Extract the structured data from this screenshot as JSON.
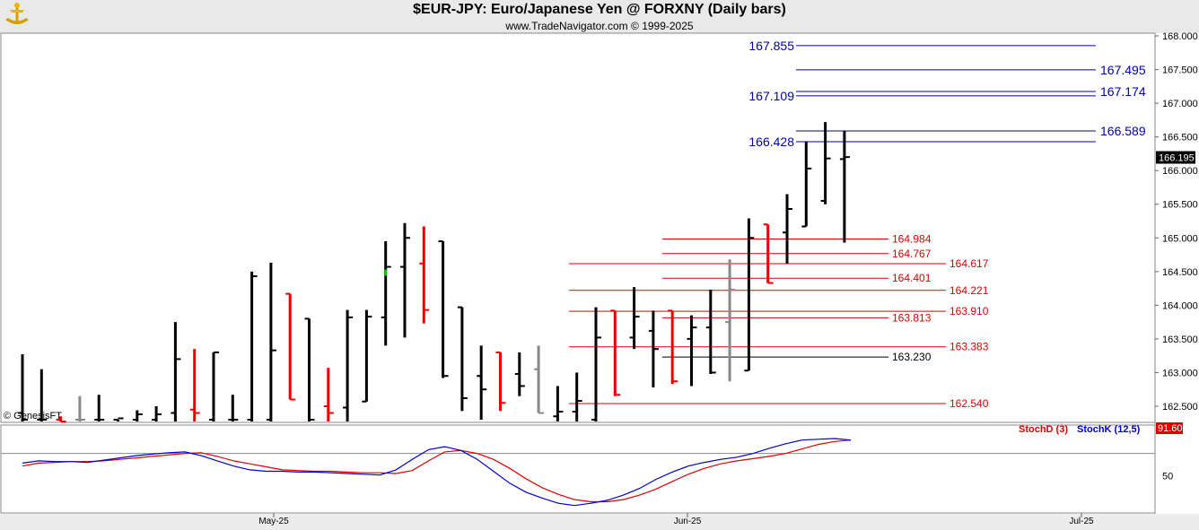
{
  "header": {
    "title": "$EUR-JPY:  Euro/Japanese Yen @ FORXNY  (Daily bars)",
    "subtitle": "www.TradeNavigator.com © 1999-2025",
    "logo_icon": "genesis-trade-navigator-logo"
  },
  "watermark": "© GenesisFT",
  "colors": {
    "up_bar": "#000000",
    "down_bar": "#ee0000",
    "neutral_bar": "#888888",
    "highlight_bar": "#00cc00",
    "blue_level": "#0000aa",
    "red_level": "#dd0000",
    "black_level": "#000000",
    "stoch_d": "#dd0000",
    "stoch_k": "#0000cc"
  },
  "chart_data": [
    {
      "type": "ohlc",
      "title": "$EUR-JPY:  Euro/Japanese Yen @ FORXNY  (Daily bars)",
      "x_ticks": [
        "May-25",
        "Jun-25",
        "Jul-25"
      ],
      "y_ticks": [
        "168.000",
        "167.500",
        "167.000",
        "166.500",
        "166.000",
        "165.500",
        "165.000",
        "164.500",
        "164.000",
        "163.500",
        "163.000",
        "162.500"
      ],
      "ylim": [
        162.3,
        168.1
      ],
      "last_price": "166.195",
      "bars": [
        {
          "h": 163.27,
          "l": 162.2,
          "o": 162.4,
          "c": 162.3,
          "color": "up"
        },
        {
          "h": 163.05,
          "l": 162.2,
          "o": 162.3,
          "c": 162.3,
          "color": "up"
        },
        {
          "h": 162.35,
          "l": 162.2,
          "o": 162.3,
          "c": 162.25,
          "color": "down"
        },
        {
          "h": 162.65,
          "l": 162.2,
          "o": 162.3,
          "c": 162.3,
          "color": "neutral"
        },
        {
          "h": 162.67,
          "l": 162.2,
          "o": 162.3,
          "c": 162.3,
          "color": "up"
        },
        {
          "h": 162.3,
          "l": 162.2,
          "o": 162.3,
          "c": 162.32,
          "color": "up"
        },
        {
          "h": 162.44,
          "l": 162.2,
          "o": 162.3,
          "c": 162.38,
          "color": "up"
        },
        {
          "h": 162.5,
          "l": 162.2,
          "o": 162.3,
          "c": 162.38,
          "color": "up"
        },
        {
          "h": 163.75,
          "l": 162.2,
          "o": 162.4,
          "c": 163.2,
          "color": "up"
        },
        {
          "h": 163.35,
          "l": 162.2,
          "o": 162.45,
          "c": 162.4,
          "color": "down"
        },
        {
          "h": 163.3,
          "l": 162.2,
          "o": 162.3,
          "c": 163.3,
          "color": "up"
        },
        {
          "h": 162.67,
          "l": 162.2,
          "o": 162.3,
          "c": 162.3,
          "color": "up"
        },
        {
          "h": 164.5,
          "l": 162.2,
          "o": 162.3,
          "c": 164.43,
          "color": "up"
        },
        {
          "h": 164.63,
          "l": 162.2,
          "o": 162.3,
          "c": 163.33,
          "color": "up"
        },
        {
          "h": 164.17,
          "l": 162.6,
          "o": 164.17,
          "c": 162.6,
          "color": "down"
        },
        {
          "h": 163.8,
          "l": 162.2,
          "o": 163.8,
          "c": 162.3,
          "color": "up"
        },
        {
          "h": 163.07,
          "l": 162.2,
          "o": 162.5,
          "c": 162.4,
          "color": "down"
        },
        {
          "h": 163.93,
          "l": 162.2,
          "o": 162.48,
          "c": 163.82,
          "color": "up"
        },
        {
          "h": 163.93,
          "l": 162.57,
          "o": 162.57,
          "c": 163.83,
          "color": "up"
        },
        {
          "h": 164.95,
          "l": 163.4,
          "o": 163.82,
          "c": 164.57,
          "color": "highlight"
        },
        {
          "h": 165.22,
          "l": 163.52,
          "o": 164.57,
          "c": 165.0,
          "color": "up"
        },
        {
          "h": 165.17,
          "l": 163.73,
          "o": 164.62,
          "c": 163.93,
          "color": "down"
        },
        {
          "h": 164.95,
          "l": 162.92,
          "o": 164.95,
          "c": 162.95,
          "color": "up"
        },
        {
          "h": 163.97,
          "l": 162.43,
          "o": 163.97,
          "c": 162.62,
          "color": "up"
        },
        {
          "h": 163.4,
          "l": 162.3,
          "o": 162.95,
          "c": 162.75,
          "color": "up"
        },
        {
          "h": 163.3,
          "l": 162.43,
          "o": 163.3,
          "c": 162.55,
          "color": "down"
        },
        {
          "h": 163.3,
          "l": 162.65,
          "o": 162.98,
          "c": 162.8,
          "color": "up"
        },
        {
          "h": 163.4,
          "l": 162.4,
          "o": 163.05,
          "c": 162.4,
          "color": "neutral"
        },
        {
          "h": 162.8,
          "l": 162.2,
          "o": 162.35,
          "c": 162.42,
          "color": "up"
        },
        {
          "h": 163.0,
          "l": 162.2,
          "o": 162.42,
          "c": 162.58,
          "color": "up"
        },
        {
          "h": 163.97,
          "l": 162.2,
          "o": 162.3,
          "c": 163.52,
          "color": "up"
        },
        {
          "h": 163.92,
          "l": 162.65,
          "o": 163.92,
          "c": 162.67,
          "color": "down"
        },
        {
          "h": 164.27,
          "l": 163.35,
          "o": 163.52,
          "c": 163.83,
          "color": "up"
        },
        {
          "h": 163.92,
          "l": 162.78,
          "o": 163.62,
          "c": 163.35,
          "color": "up"
        },
        {
          "h": 163.92,
          "l": 162.83,
          "o": 163.92,
          "c": 162.87,
          "color": "down"
        },
        {
          "h": 163.85,
          "l": 162.8,
          "o": 163.5,
          "c": 163.67,
          "color": "up"
        },
        {
          "h": 164.23,
          "l": 162.98,
          "o": 163.67,
          "c": 163.0,
          "color": "up"
        },
        {
          "h": 164.68,
          "l": 162.87,
          "o": 163.75,
          "c": 164.23,
          "color": "neutral"
        },
        {
          "h": 165.29,
          "l": 163.03,
          "o": 163.03,
          "c": 165.0,
          "color": "up"
        },
        {
          "h": 165.2,
          "l": 164.33,
          "o": 165.2,
          "c": 164.33,
          "color": "down"
        },
        {
          "h": 165.65,
          "l": 164.62,
          "o": 165.08,
          "c": 165.43,
          "color": "up"
        },
        {
          "h": 166.43,
          "l": 165.17,
          "o": 165.17,
          "c": 166.03,
          "color": "up"
        },
        {
          "h": 166.72,
          "l": 165.5,
          "o": 165.55,
          "c": 166.18,
          "color": "up"
        },
        {
          "h": 166.59,
          "l": 164.93,
          "o": 166.17,
          "c": 166.2,
          "color": "up"
        }
      ],
      "levels": [
        {
          "value": 167.855,
          "label": "167.855",
          "color": "blue"
        },
        {
          "value": 167.495,
          "label": "167.495",
          "color": "blue"
        },
        {
          "value": 167.174,
          "label": "167.174",
          "color": "blue"
        },
        {
          "value": 167.109,
          "label": "167.109",
          "color": "blue"
        },
        {
          "value": 166.589,
          "label": "166.589",
          "color": "blue"
        },
        {
          "value": 166.428,
          "label": "166.428",
          "color": "blue"
        },
        {
          "value": 164.984,
          "label": "164.984",
          "color": "red"
        },
        {
          "value": 164.767,
          "label": "164.767",
          "color": "red"
        },
        {
          "value": 164.617,
          "label": "164.617",
          "color": "red"
        },
        {
          "value": 164.401,
          "label": "164.401",
          "color": "red"
        },
        {
          "value": 164.221,
          "label": "164.221",
          "color": "red"
        },
        {
          "value": 163.91,
          "label": "163.910",
          "color": "red"
        },
        {
          "value": 163.813,
          "label": "163.813",
          "color": "red"
        },
        {
          "value": 163.383,
          "label": "163.383",
          "color": "red"
        },
        {
          "value": 163.23,
          "label": "163.230",
          "color": "black"
        },
        {
          "value": 162.54,
          "label": "162.540",
          "color": "red"
        }
      ]
    },
    {
      "type": "line",
      "series": [
        {
          "name": "StochD (3)",
          "color": "red",
          "values": [
            63,
            67,
            68,
            69,
            69,
            70,
            72,
            74,
            76,
            78,
            80,
            81,
            76,
            70,
            66,
            62,
            58,
            57,
            56,
            56,
            55,
            54,
            54,
            53,
            57,
            70,
            82,
            84,
            80,
            72,
            60,
            46,
            34,
            25,
            18,
            15,
            15,
            18,
            24,
            32,
            42,
            52,
            60,
            66,
            70,
            73,
            76,
            80,
            86,
            92,
            96,
            98
          ]
        },
        {
          "name": "StochK (12,5)",
          "color": "blue",
          "values": [
            67,
            70,
            69,
            69,
            68,
            71,
            74,
            77,
            79,
            81,
            82,
            77,
            70,
            63,
            58,
            56,
            56,
            55,
            55,
            54,
            53,
            52,
            51,
            58,
            72,
            85,
            89,
            84,
            72,
            56,
            40,
            28,
            20,
            13,
            10,
            13,
            17,
            24,
            33,
            45,
            55,
            63,
            68,
            72,
            75,
            80,
            87,
            93,
            98,
            99,
            100,
            98
          ]
        }
      ],
      "y_ticks": [
        "50"
      ],
      "ylim": [
        0,
        104
      ],
      "reference_line": 80,
      "last_value": "91.60",
      "legend": "top-right"
    }
  ]
}
